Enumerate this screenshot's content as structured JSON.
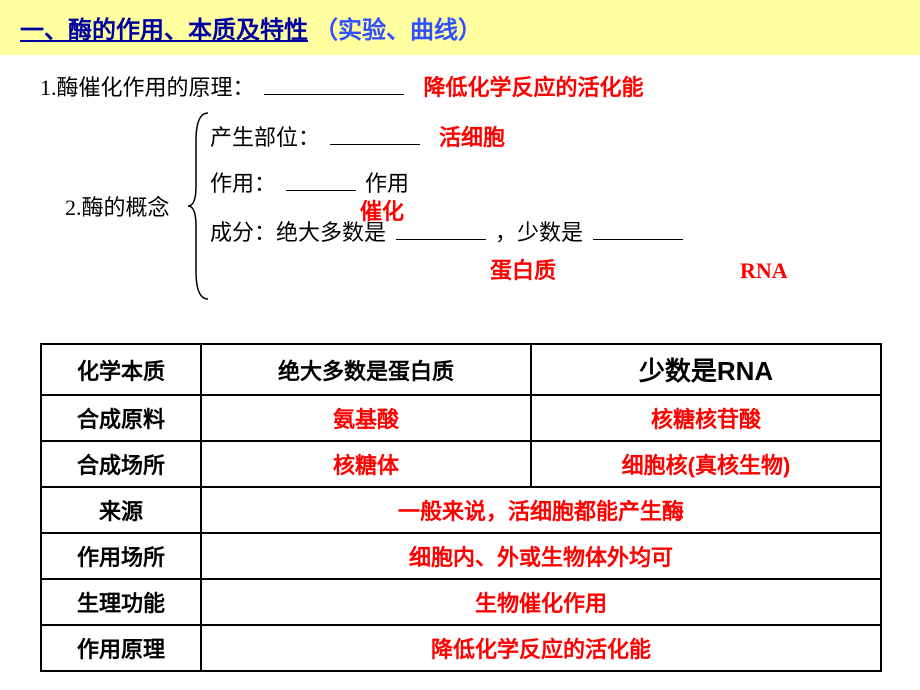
{
  "header": {
    "title_black": "一、酶的作用、本质及特性",
    "title_blue": "（实验、曲线）"
  },
  "section1": {
    "label": "1.酶催化作用的原理：",
    "answer": "降低化学反应的活化能"
  },
  "section2": {
    "label": "2.酶的概念",
    "lines": {
      "loc": {
        "t": "产生部位：",
        "a": "活细胞"
      },
      "func": {
        "t1": "作用：",
        "t2": "作用",
        "a": "催化"
      },
      "comp": {
        "t1": "成分：绝大多数是",
        "t2": "，少数是",
        "a1": "蛋白质",
        "a2": "RNA"
      }
    }
  },
  "table": {
    "rows": [
      {
        "label": "化学本质",
        "c2": "绝大多数是蛋白质",
        "c3": "少数是RNA",
        "c2red": false,
        "c3red": false,
        "span": false,
        "bigger3": true
      },
      {
        "label": "合成原料",
        "c2": "氨基酸",
        "c3": "核糖核苷酸",
        "c2red": true,
        "c3red": true,
        "span": false
      },
      {
        "label": "合成场所",
        "c2": "核糖体",
        "c3": "细胞核(真核生物)",
        "c2red": true,
        "c3red": true,
        "span": false
      },
      {
        "label": "来源",
        "c2": "一般来说，活细胞都能产生酶",
        "c2red": true,
        "span": true
      },
      {
        "label": "作用场所",
        "c2": "细胞内、外或生物体外均可",
        "c2red": true,
        "span": true
      },
      {
        "label": "生理功能",
        "c2": "生物催化作用",
        "c2red": true,
        "span": true
      },
      {
        "label": "作用原理",
        "c2": "降低化学反应的活化能",
        "c2red": true,
        "span": true
      }
    ]
  },
  "colors": {
    "red": "#ff0000",
    "blue": "#3050ff",
    "banner": "#ffffa0"
  }
}
